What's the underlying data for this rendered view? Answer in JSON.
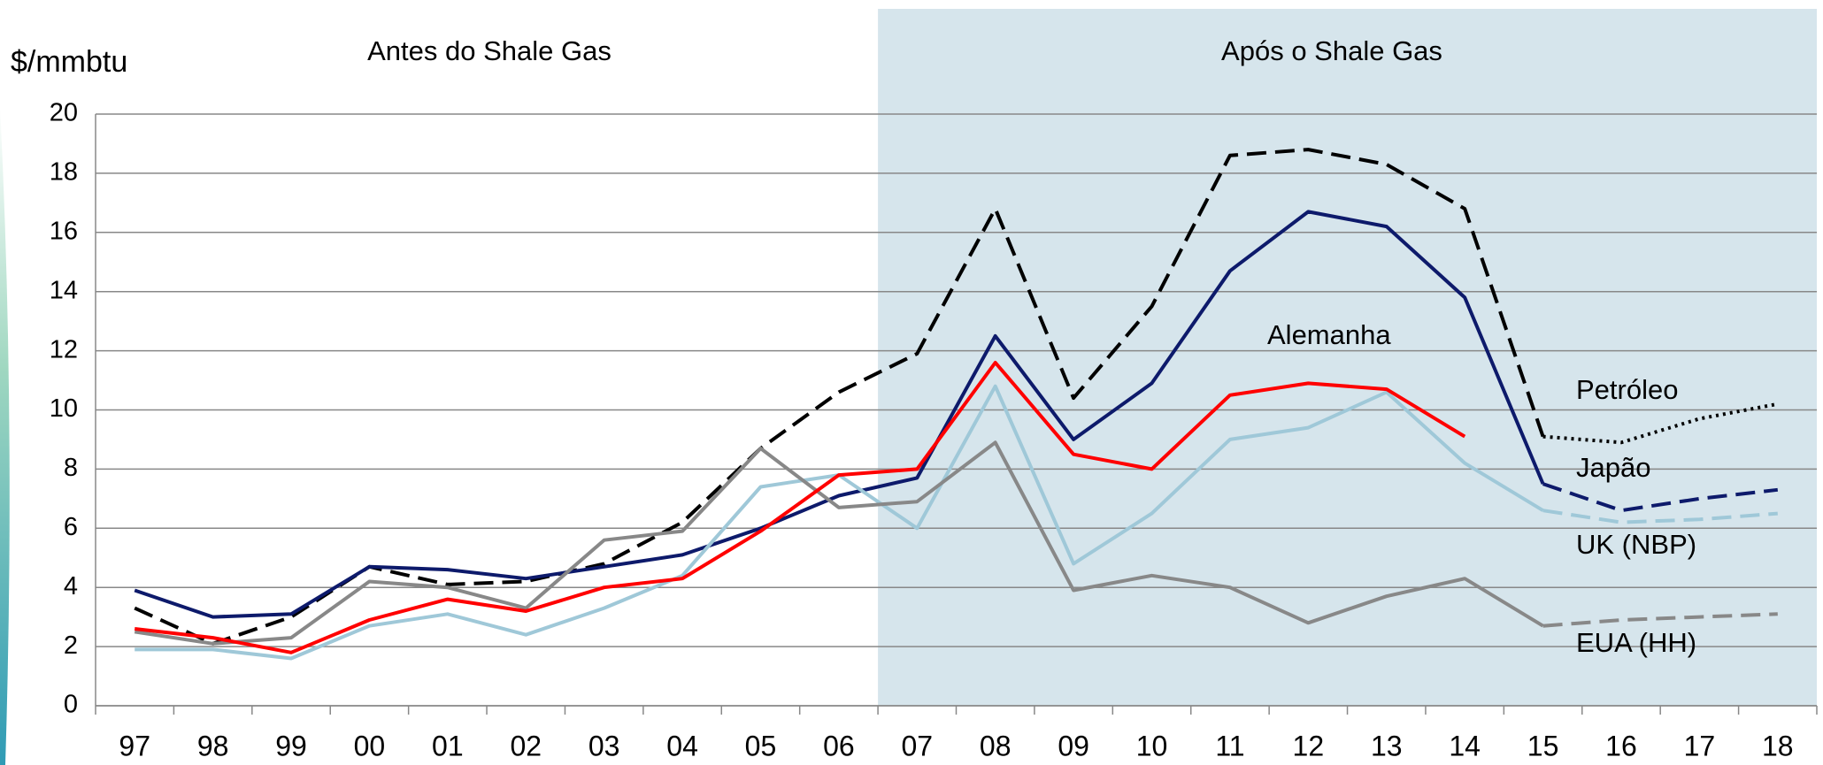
{
  "chart_data": {
    "type": "line",
    "y_label": "$/mmbtu",
    "annotations": [
      "Antes do Shale Gas",
      "Após o Shale Gas"
    ],
    "shaded_from": "07",
    "shade_color": "#d6e5ec",
    "projection_start": "15",
    "categories": [
      "97",
      "98",
      "99",
      "00",
      "01",
      "02",
      "03",
      "04",
      "05",
      "06",
      "07",
      "08",
      "09",
      "10",
      "11",
      "12",
      "13",
      "14",
      "15",
      "16",
      "17",
      "18"
    ],
    "ylim": [
      0,
      20
    ],
    "yticks": [
      0,
      2,
      4,
      6,
      8,
      10,
      12,
      14,
      16,
      18,
      20
    ],
    "grid": true,
    "series": [
      {
        "name": "Petróleo",
        "color": "#000000",
        "style": "dashed",
        "projected_style": "dotted",
        "values": [
          3.3,
          2.1,
          3.0,
          4.7,
          4.1,
          4.2,
          4.8,
          6.2,
          8.7,
          10.6,
          11.9,
          16.8,
          10.4,
          13.5,
          18.6,
          18.8,
          18.3,
          16.8,
          9.1,
          8.9,
          9.7,
          10.2
        ]
      },
      {
        "name": "Japão",
        "color": "#0d1a6b",
        "style": "solid",
        "projected_style": "dashed",
        "values": [
          3.9,
          3.0,
          3.1,
          4.7,
          4.6,
          4.3,
          4.7,
          5.1,
          6.0,
          7.1,
          7.7,
          12.5,
          9.0,
          10.9,
          14.7,
          16.7,
          16.2,
          13.8,
          7.5,
          6.6,
          7.0,
          7.3
        ]
      },
      {
        "name": "UK (NBP)",
        "color": "#9fc8d8",
        "style": "solid",
        "projected_style": "dashed",
        "values": [
          1.9,
          1.9,
          1.6,
          2.7,
          3.1,
          2.4,
          3.3,
          4.4,
          7.4,
          7.8,
          6.0,
          10.8,
          4.8,
          6.5,
          9.0,
          9.4,
          10.6,
          8.2,
          6.6,
          6.2,
          6.3,
          6.5
        ]
      },
      {
        "name": "EUA (HH)",
        "color": "#888888",
        "style": "solid",
        "projected_style": "dashed",
        "values": [
          2.5,
          2.1,
          2.3,
          4.2,
          4.0,
          3.3,
          5.6,
          5.9,
          8.7,
          6.7,
          6.9,
          8.9,
          3.9,
          4.4,
          4.0,
          2.8,
          3.7,
          4.3,
          2.7,
          2.9,
          3.0,
          3.1
        ]
      },
      {
        "name": "Alemanha",
        "color": "#ff0000",
        "style": "solid",
        "projected_style": "dashed",
        "values": [
          2.6,
          2.3,
          1.8,
          2.9,
          3.6,
          3.2,
          4.0,
          4.3,
          5.9,
          7.8,
          8.0,
          11.6,
          8.5,
          8.0,
          10.5,
          10.9,
          10.7,
          9.1,
          null,
          null,
          null,
          null
        ]
      }
    ]
  }
}
